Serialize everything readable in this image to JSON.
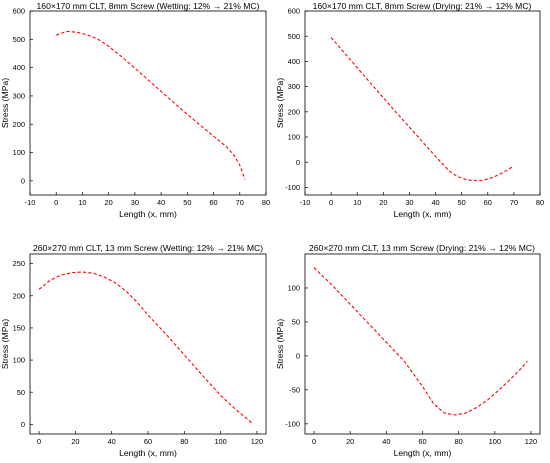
{
  "chart_data": [
    {
      "type": "line",
      "title": "160×170 mm CLT, 8mm Screw (Wetting: 12% → 21% MC)",
      "xlabel": "Length (x, mm)",
      "ylabel": "Stress (MPa)",
      "xlim": [
        -10,
        80
      ],
      "ylim": [
        -50,
        600
      ],
      "xticks": [
        -10,
        0,
        10,
        20,
        30,
        40,
        50,
        60,
        70,
        80
      ],
      "yticks": [
        0,
        100,
        200,
        300,
        400,
        500,
        600
      ],
      "grid": false,
      "series": [
        {
          "color": "#ff0000",
          "line_style": "dashed",
          "x": [
            0,
            4,
            8,
            12,
            16,
            20,
            25,
            30,
            35,
            40,
            45,
            50,
            55,
            60,
            65,
            68,
            70,
            72
          ],
          "y": [
            515,
            528,
            525,
            515,
            500,
            475,
            438,
            398,
            357,
            316,
            275,
            235,
            196,
            158,
            120,
            88,
            55,
            5
          ]
        }
      ]
    },
    {
      "type": "line",
      "title": "160×170 mm CLT, 8mm Screw (Drying: 21% → 12% MC)",
      "xlabel": "Length (x, mm)",
      "ylabel": "Stress (MPa)",
      "xlim": [
        -10,
        80
      ],
      "ylim": [
        -130,
        600
      ],
      "xticks": [
        -10,
        0,
        10,
        20,
        30,
        40,
        50,
        60,
        70,
        80
      ],
      "yticks": [
        -100,
        0,
        100,
        200,
        300,
        400,
        500,
        600
      ],
      "grid": false,
      "series": [
        {
          "color": "#ff0000",
          "line_style": "dashed",
          "x": [
            0,
            5,
            10,
            15,
            20,
            25,
            30,
            35,
            40,
            45,
            48,
            52,
            55,
            58,
            62,
            66,
            70
          ],
          "y": [
            495,
            435,
            375,
            315,
            256,
            197,
            139,
            81,
            23,
            -32,
            -55,
            -70,
            -73,
            -72,
            -60,
            -40,
            -15
          ]
        }
      ]
    },
    {
      "type": "line",
      "title": "260×270 mm CLT, 13 mm Screw (Wetting: 12% → 21% MC)",
      "xlabel": "Length (x, mm)",
      "ylabel": "Stress (MPa)",
      "xlim": [
        -5,
        125
      ],
      "ylim": [
        -15,
        265
      ],
      "xticks": [
        0,
        20,
        40,
        60,
        80,
        100,
        120
      ],
      "yticks": [
        0,
        50,
        100,
        150,
        200,
        250
      ],
      "grid": false,
      "series": [
        {
          "color": "#ff0000",
          "line_style": "dashed",
          "x": [
            0,
            6,
            12,
            18,
            24,
            30,
            36,
            42,
            48,
            54,
            60,
            70,
            80,
            90,
            100,
            108,
            114,
            118
          ],
          "y": [
            210,
            224,
            232,
            236,
            237,
            235,
            229,
            220,
            207,
            190,
            170,
            140,
            108,
            76,
            45,
            24,
            10,
            0
          ]
        }
      ]
    },
    {
      "type": "line",
      "title": "260×270 mm CLT, 13 mm Screw (Drying: 21% → 12% MC)",
      "xlabel": "Length (x, mm)",
      "ylabel": "Stress (MPa)",
      "xlim": [
        -5,
        125
      ],
      "ylim": [
        -115,
        150
      ],
      "xticks": [
        0,
        20,
        40,
        60,
        80,
        100,
        120
      ],
      "yticks": [
        -100,
        -50,
        0,
        50,
        100
      ],
      "grid": false,
      "series": [
        {
          "color": "#ff0000",
          "line_style": "dashed",
          "x": [
            0,
            10,
            20,
            30,
            40,
            50,
            60,
            66,
            72,
            78,
            84,
            90,
            96,
            102,
            108,
            114,
            118
          ],
          "y": [
            130,
            104,
            76,
            48,
            20,
            -8,
            -45,
            -70,
            -84,
            -87,
            -84,
            -76,
            -65,
            -51,
            -36,
            -20,
            -8
          ]
        }
      ]
    }
  ]
}
